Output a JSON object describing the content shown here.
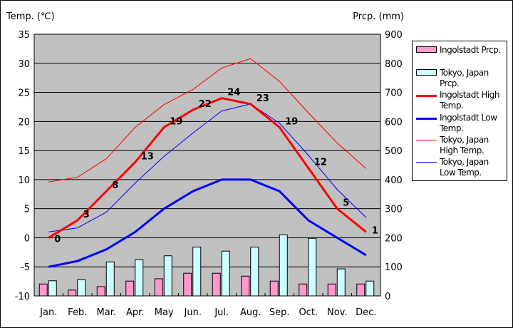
{
  "chart_data": {
    "type": "bar+line",
    "ylabel_left": "Temp. (℃)",
    "ylabel_right": "Prcp. (mm)",
    "ylim_left": [
      -10,
      35
    ],
    "ylim_right": [
      0,
      900
    ],
    "yticks_left": [
      "35",
      "30",
      "25",
      "20",
      "15",
      "10",
      "5",
      "0",
      "-5",
      "-10"
    ],
    "yticks_right": [
      "900",
      "800",
      "700",
      "600",
      "500",
      "400",
      "300",
      "200",
      "100",
      "0"
    ],
    "categories": [
      "Jan.",
      "Feb.",
      "Mar.",
      "Apr.",
      "May",
      "Jun.",
      "Jul.",
      "Aug.",
      "Sep.",
      "Oct.",
      "Nov.",
      "Dec."
    ],
    "series": [
      {
        "name": "Ingolstadt Prcp.",
        "kind": "bar",
        "axis": "right",
        "color": "#ff99cc",
        "values": [
          41,
          20,
          32,
          51,
          59,
          78,
          78,
          68,
          51,
          41,
          41,
          41
        ]
      },
      {
        "name": "Tokyo, Japan Prcp.",
        "kind": "bar",
        "axis": "right",
        "color": "#ccffff",
        "values": [
          52,
          56,
          117,
          125,
          138,
          168,
          154,
          168,
          210,
          198,
          93,
          51
        ]
      },
      {
        "name": "Ingolstadt High Temp.",
        "kind": "line",
        "axis": "left",
        "color": "#ff0000",
        "width": 3,
        "values": [
          0,
          3,
          8,
          13,
          19,
          22,
          24,
          23,
          19,
          12,
          5,
          1
        ],
        "labels": [
          "0",
          "3",
          "8",
          "13",
          "19",
          "22",
          "24",
          "23",
          "19",
          "12",
          "5",
          "1"
        ]
      },
      {
        "name": "Ingolstadt Low Temp.",
        "kind": "line",
        "axis": "left",
        "color": "#0000ff",
        "width": 3,
        "values": [
          -5,
          -4,
          -2,
          1,
          5,
          8,
          10,
          10,
          8,
          3,
          0,
          -3
        ]
      },
      {
        "name": "Tokyo, Japan High Temp.",
        "kind": "line",
        "axis": "left",
        "color": "#ff0000",
        "width": 1,
        "values": [
          9.6,
          10.4,
          13.6,
          19,
          22.9,
          25.5,
          29.2,
          30.8,
          26.9,
          21.5,
          16.3,
          11.9
        ]
      },
      {
        "name": "Tokyo, Japan Low Temp.",
        "kind": "line",
        "axis": "left",
        "color": "#0000ff",
        "width": 1,
        "values": [
          1,
          1.7,
          4.4,
          9.4,
          14,
          18,
          21.8,
          23,
          19.7,
          14.2,
          8.3,
          3.5
        ]
      }
    ],
    "legend": [
      "Ingolstadt Prcp.",
      "Tokyo, Japan\nPrcp.",
      "Ingolstadt High\nTemp.",
      "Ingolstadt Low\nTemp.",
      "Tokyo, Japan\nHigh Temp.",
      "Tokyo, Japan\nLow Temp."
    ],
    "legend_position": "right",
    "grid": true
  }
}
